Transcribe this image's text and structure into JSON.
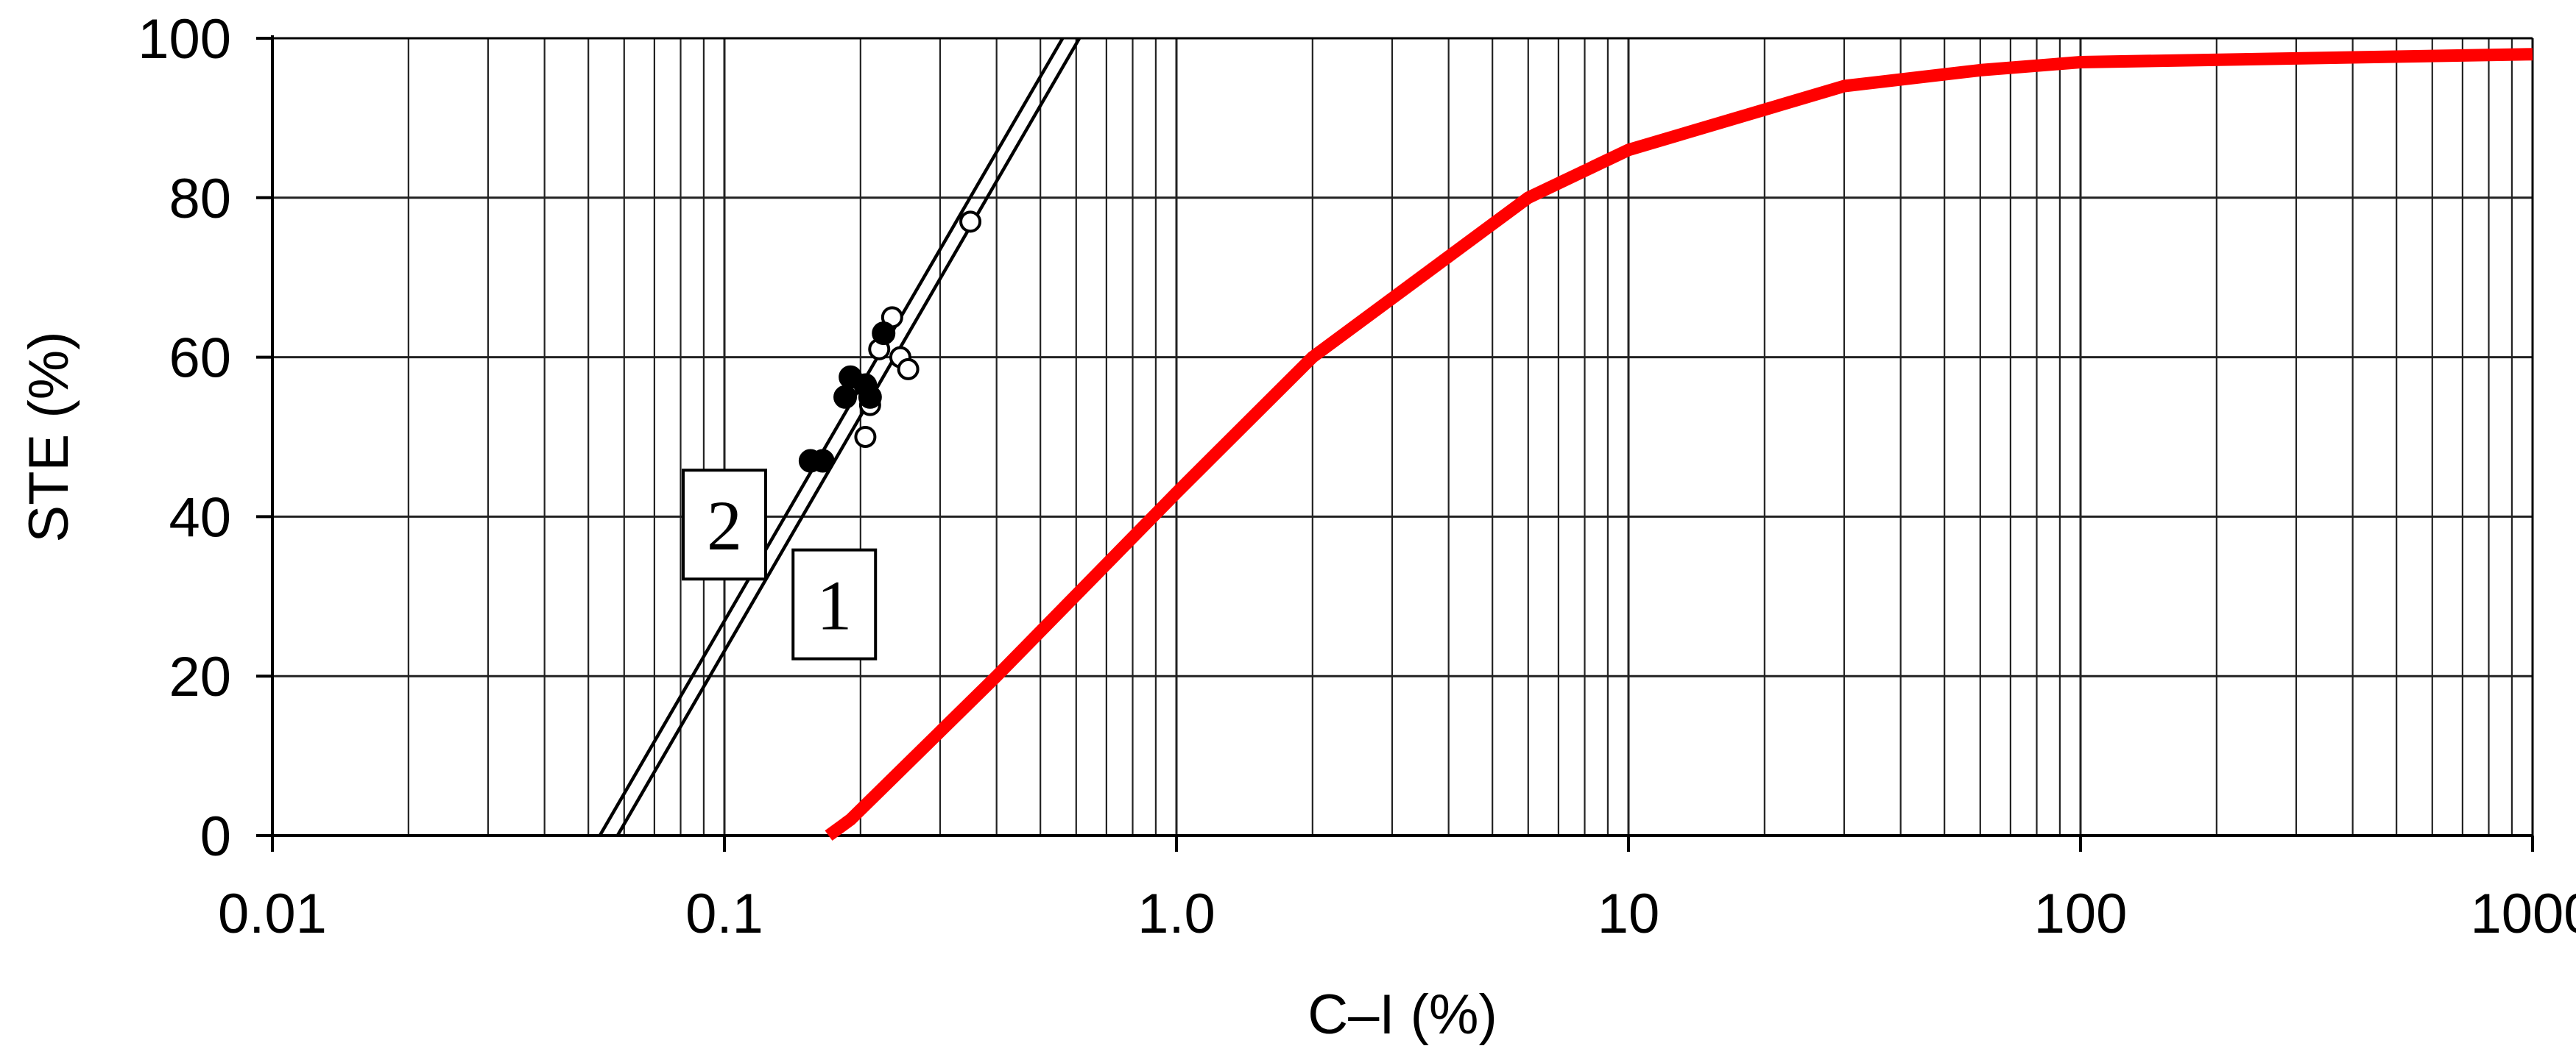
{
  "chart_data": {
    "type": "line",
    "title": "",
    "xlabel": "C–I (%)",
    "ylabel": "STE (%)",
    "x_scale": "log",
    "xlim": [
      0.01,
      1000
    ],
    "ylim": [
      0,
      100
    ],
    "x_ticks": [
      {
        "value": 0.01,
        "label": "0.01"
      },
      {
        "value": 0.1,
        "label": "0.1"
      },
      {
        "value": 1,
        "label": "1.0"
      },
      {
        "value": 10,
        "label": "10"
      },
      {
        "value": 100,
        "label": "100"
      },
      {
        "value": 1000,
        "label": "1000"
      }
    ],
    "y_ticks": [
      {
        "value": 0,
        "label": "0"
      },
      {
        "value": 20,
        "label": "20"
      },
      {
        "value": 40,
        "label": "40"
      },
      {
        "value": 60,
        "label": "60"
      },
      {
        "value": 80,
        "label": "80"
      },
      {
        "value": 100,
        "label": "100"
      }
    ],
    "grid": true,
    "series": [
      {
        "kind": "line",
        "color": "#ff0000",
        "points": [
          {
            "x": 0.17,
            "y": 0
          },
          {
            "x": 0.19,
            "y": 2
          },
          {
            "x": 0.4,
            "y": 20
          },
          {
            "x": 1.0,
            "y": 43
          },
          {
            "x": 2.0,
            "y": 60
          },
          {
            "x": 6.0,
            "y": 80
          },
          {
            "x": 10,
            "y": 86
          },
          {
            "x": 30,
            "y": 94
          },
          {
            "x": 60,
            "y": 96
          },
          {
            "x": 100,
            "y": 97
          },
          {
            "x": 1000,
            "y": 98
          }
        ]
      },
      {
        "kind": "line",
        "color": "#000000",
        "label": "1",
        "points": [
          {
            "x": 0.058,
            "y": 0
          },
          {
            "x": 0.61,
            "y": 100
          }
        ]
      },
      {
        "kind": "line",
        "color": "#000000",
        "label": "2",
        "points": [
          {
            "x": 0.053,
            "y": 0
          },
          {
            "x": 0.56,
            "y": 100
          }
        ]
      },
      {
        "kind": "scatter",
        "marker": "open-circle",
        "color": "#000000",
        "points": [
          {
            "x": 0.35,
            "y": 77
          },
          {
            "x": 0.235,
            "y": 65
          },
          {
            "x": 0.22,
            "y": 61
          },
          {
            "x": 0.245,
            "y": 60
          },
          {
            "x": 0.255,
            "y": 58.5
          },
          {
            "x": 0.21,
            "y": 54
          },
          {
            "x": 0.205,
            "y": 50
          }
        ]
      },
      {
        "kind": "scatter",
        "marker": "filled-circle",
        "color": "#000000",
        "points": [
          {
            "x": 0.225,
            "y": 63
          },
          {
            "x": 0.19,
            "y": 57.5
          },
          {
            "x": 0.205,
            "y": 56.5
          },
          {
            "x": 0.185,
            "y": 55
          },
          {
            "x": 0.21,
            "y": 55
          },
          {
            "x": 0.155,
            "y": 47
          },
          {
            "x": 0.165,
            "y": 47
          }
        ]
      }
    ],
    "annotations": [
      {
        "text": "2",
        "x": 0.1,
        "y": 39,
        "series": "2"
      },
      {
        "text": "1",
        "x": 0.175,
        "y": 29,
        "series": "1"
      }
    ]
  }
}
